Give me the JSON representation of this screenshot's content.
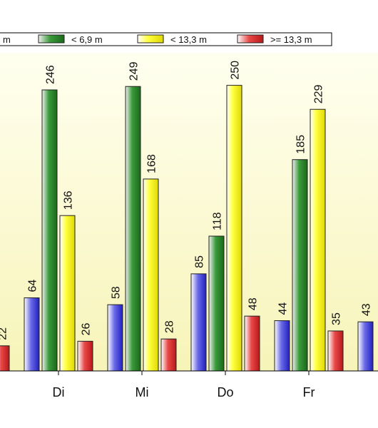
{
  "chart_data": {
    "type": "bar",
    "categories": [
      "",
      "Di",
      "Mi",
      "Do",
      "Fr",
      ""
    ],
    "series": [
      {
        "name": "",
        "color": "#3b3bd6",
        "values": [
          null,
          64,
          58,
          85,
          44,
          43
        ]
      },
      {
        "name": "< 6,9 m",
        "color": "#2e8b2e",
        "values": [
          null,
          246,
          249,
          118,
          185,
          null
        ]
      },
      {
        "name": "< 13,3 m",
        "color": "#f5f500",
        "values": [
          null,
          136,
          168,
          250,
          229,
          null
        ]
      },
      {
        "name": ">= 13,3 m",
        "color": "#e03030",
        "values": [
          22,
          26,
          28,
          48,
          35,
          null
        ]
      }
    ],
    "legend": {
      "placement": "top",
      "entries": [
        "m",
        "< 6,9 m",
        "< 13,3 m",
        ">= 13,3 m"
      ]
    },
    "ylim": [
      0,
      300
    ],
    "title": "",
    "xlabel": "",
    "ylabel": "",
    "grid": false
  }
}
